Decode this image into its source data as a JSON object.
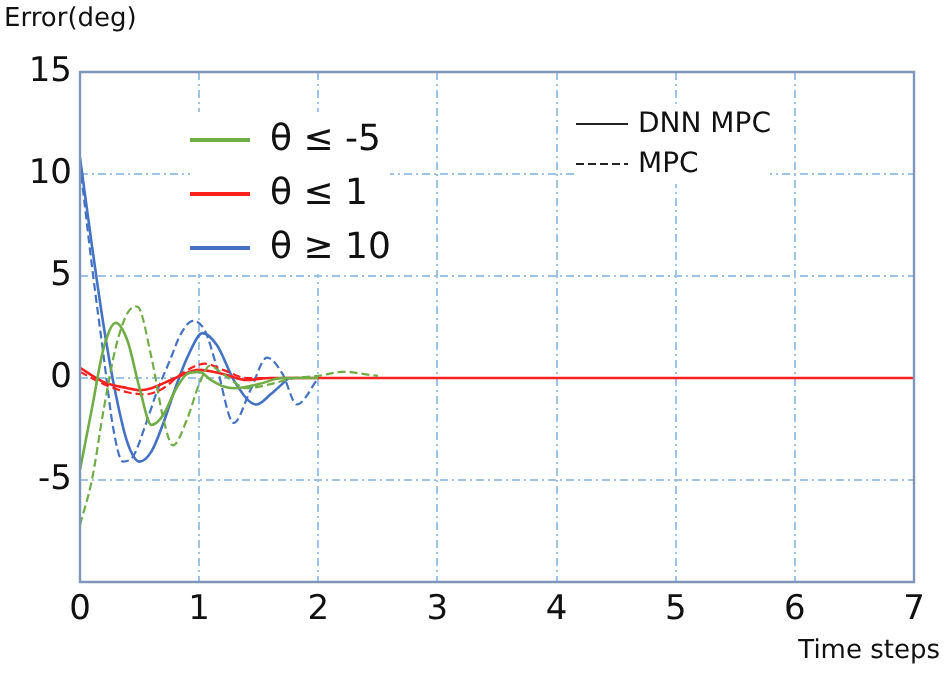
{
  "chart_data": {
    "type": "line",
    "xlabel": "Time steps",
    "ylabel": "Error(deg)",
    "xlim": [
      0,
      7
    ],
    "xticks": [
      0,
      1,
      2,
      3,
      4,
      5,
      6,
      7
    ],
    "ylim": [
      -10,
      15
    ],
    "yticks": [
      -5,
      0,
      5,
      10,
      15
    ],
    "grid": true,
    "legend": "top left",
    "marker": "none",
    "annotations": [
      "DNN MPC",
      "MPC"
    ],
    "series": [
      {
        "name": "θ ≤ -5",
        "color": "#70ad47",
        "line_style": "solid",
        "x": [
          0,
          0.1,
          0.2,
          0.3,
          0.4,
          0.5,
          0.6,
          0.7,
          0.8,
          0.9,
          1.0,
          1.1,
          1.2,
          1.3,
          1.5,
          1.7,
          2
        ],
        "values": [
          -4.5,
          -1.5,
          1.5,
          2.7,
          1.8,
          -0.5,
          -2.3,
          -1.8,
          -0.6,
          0.2,
          0.3,
          -0.1,
          -0.4,
          -0.5,
          -0.3,
          0,
          0
        ]
      },
      {
        "color": "#70ad47",
        "line_style": "dashed",
        "x": [
          0,
          0.1,
          0.2,
          0.3,
          0.4,
          0.48,
          0.6,
          0.7,
          0.78,
          0.9,
          1.0,
          1.09,
          1.2,
          1.4,
          1.6,
          1.8,
          2.0,
          2.2,
          2.5
        ],
        "values": [
          -7.2,
          -5,
          -1.5,
          1.5,
          3.2,
          3.5,
          1.0,
          -2.0,
          -3.3,
          -2.0,
          -0.3,
          0.6,
          0.2,
          -0.5,
          -0.3,
          0,
          0.1,
          0.3,
          0.1
        ]
      },
      {
        "name": "θ ≤ 1",
        "color": "#ff2020",
        "line_style": "solid",
        "x": [
          0,
          0.2,
          0.4,
          0.5,
          0.6,
          0.8,
          1.0,
          1.2,
          1.4,
          1.6,
          2,
          3,
          4,
          5,
          6,
          7
        ],
        "values": [
          0.5,
          -0.2,
          -0.5,
          -0.6,
          -0.5,
          0,
          0.4,
          0.2,
          -0.1,
          0,
          0,
          0,
          0,
          0,
          0,
          0
        ]
      },
      {
        "color": "#ff2020",
        "line_style": "dashed",
        "x": [
          0,
          0.2,
          0.4,
          0.55,
          0.7,
          0.85,
          1.05,
          1.2,
          1.4,
          1.6,
          2,
          3,
          4,
          5,
          6,
          7
        ],
        "values": [
          0.3,
          -0.3,
          -0.7,
          -0.8,
          -0.5,
          0.2,
          0.7,
          0.4,
          0,
          0,
          0,
          0,
          0,
          0,
          0,
          0
        ]
      },
      {
        "name": "θ ≥ 10",
        "color": "#4472c4",
        "line_style": "solid",
        "x": [
          0,
          0.1,
          0.2,
          0.3,
          0.4,
          0.5,
          0.6,
          0.7,
          0.8,
          0.9,
          1.03,
          1.15,
          1.3,
          1.48,
          1.6,
          1.75
        ],
        "values": [
          10.8,
          6.5,
          2.5,
          -0.8,
          -3.2,
          -4.1,
          -3.6,
          -2.2,
          -0.5,
          1.0,
          2.2,
          1.6,
          -0.2,
          -1.3,
          -0.8,
          0
        ]
      },
      {
        "color": "#4472c4",
        "line_style": "dashed",
        "x": [
          0,
          0.1,
          0.2,
          0.28,
          0.36,
          0.45,
          0.55,
          0.65,
          0.75,
          0.85,
          0.95,
          1.05,
          1.15,
          1.29,
          1.43,
          1.57,
          1.7,
          1.82,
          2.0
        ],
        "values": [
          10.5,
          5.5,
          1,
          -2.5,
          -4.1,
          -3.8,
          -2.3,
          -0.6,
          0.8,
          2.2,
          2.8,
          2.3,
          0.5,
          -2.2,
          -0.6,
          1.0,
          0.2,
          -1.3,
          0
        ]
      }
    ]
  }
}
